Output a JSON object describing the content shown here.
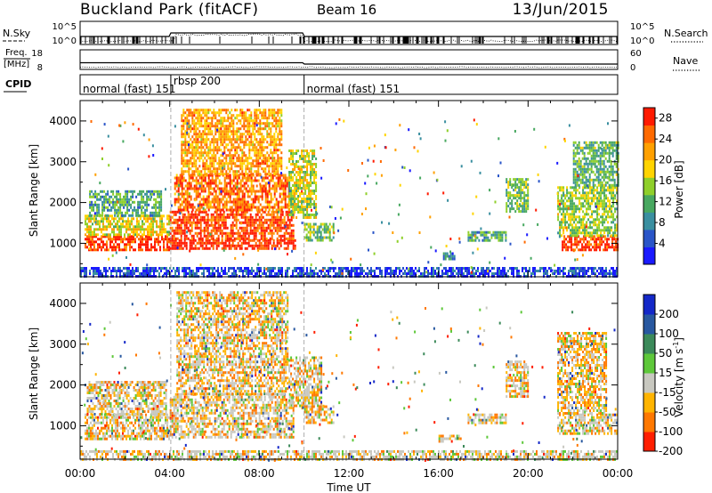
{
  "header": {
    "station": "Buckland Park (fitACF)",
    "beam": "Beam 16",
    "date": "13/Jun/2015"
  },
  "summary_panels": {
    "nsky": {
      "label": "N.Sky",
      "ticks": [
        "10^5",
        "10^0"
      ],
      "right_ticks": [
        "10^5",
        "10^0"
      ],
      "right_label": "N.Search"
    },
    "freq": {
      "label_line1": "Freq.",
      "label_line2": "[MHz]",
      "ticks": [
        "18",
        "8"
      ],
      "right_ticks": [
        "60",
        "0"
      ],
      "right_label": "Nave"
    },
    "cpid": {
      "label": "CPID",
      "segments": [
        {
          "name": "normal (fast) 151",
          "start_hour": 0.0,
          "end_hour": 4.05
        },
        {
          "name": "rbsp 200",
          "start_hour": 4.05,
          "end_hour": 10.0
        },
        {
          "name": "normal (fast) 151",
          "start_hour": 10.0,
          "end_hour": 24.0
        }
      ]
    }
  },
  "chart_data": [
    {
      "type": "heatmap",
      "name": "power",
      "xlabel": "",
      "ylabel": "Slant Range [km]",
      "xlim": [
        0,
        24
      ],
      "ylim": [
        180,
        4500
      ],
      "yticks": [
        1000,
        2000,
        3000,
        4000
      ],
      "colorbar": {
        "label": "Power [dB]",
        "ticks": [
          4,
          8,
          12,
          16,
          20,
          24,
          28
        ],
        "range": [
          0,
          30
        ],
        "colors": [
          "#1a1aff",
          "#2a55c8",
          "#3a8fa0",
          "#48a860",
          "#8fcf2a",
          "#ffd400",
          "#ffa000",
          "#ff6a00",
          "#ff1a00"
        ]
      },
      "regions": [
        {
          "t0": 0.2,
          "t1": 4.0,
          "r0": 850,
          "r1": 1200,
          "level": 0.92
        },
        {
          "t0": 0.2,
          "t1": 4.0,
          "r0": 1200,
          "r1": 1700,
          "level": 0.6
        },
        {
          "t0": 0.4,
          "t1": 3.6,
          "r0": 1700,
          "r1": 2300,
          "level": 0.35
        },
        {
          "t0": 4.0,
          "t1": 9.6,
          "r0": 850,
          "r1": 1100,
          "level": 0.97
        },
        {
          "t0": 4.0,
          "t1": 9.5,
          "r0": 1100,
          "r1": 1800,
          "level": 0.9
        },
        {
          "t0": 4.2,
          "t1": 9.3,
          "r0": 1800,
          "r1": 2700,
          "level": 0.82
        },
        {
          "t0": 4.5,
          "t1": 9.0,
          "r0": 2700,
          "r1": 4300,
          "level": 0.72
        },
        {
          "t0": 9.3,
          "t1": 10.5,
          "r0": 1600,
          "r1": 3300,
          "level": 0.55
        },
        {
          "t0": 10.0,
          "t1": 11.3,
          "r0": 1100,
          "r1": 1500,
          "level": 0.45
        },
        {
          "t0": 16.2,
          "t1": 16.7,
          "r0": 600,
          "r1": 780,
          "level": 0.25
        },
        {
          "t0": 17.3,
          "t1": 19.0,
          "r0": 1050,
          "r1": 1300,
          "level": 0.35
        },
        {
          "t0": 19.0,
          "t1": 20.0,
          "r0": 1800,
          "r1": 2600,
          "level": 0.45
        },
        {
          "t0": 21.5,
          "t1": 24.0,
          "r0": 850,
          "r1": 1200,
          "level": 0.93
        },
        {
          "t0": 21.3,
          "t1": 24.0,
          "r0": 1200,
          "r1": 2400,
          "level": 0.5
        },
        {
          "t0": 22.0,
          "t1": 24.0,
          "r0": 2400,
          "r1": 3500,
          "level": 0.4
        },
        {
          "t0": 0.0,
          "t1": 24.0,
          "r0": 200,
          "r1": 420,
          "level": 0.12
        }
      ]
    },
    {
      "type": "heatmap",
      "name": "velocity",
      "xlabel": "Time UT",
      "ylabel": "Slant Range [km]",
      "xlim": [
        0,
        24
      ],
      "xticks": [
        "00:00",
        "04:00",
        "08:00",
        "12:00",
        "16:00",
        "20:00",
        "00:00"
      ],
      "ylim": [
        180,
        4500
      ],
      "yticks": [
        1000,
        2000,
        3000,
        4000
      ],
      "colorbar": {
        "label": "Velocity [m s^-1]",
        "ticks": [
          200,
          100,
          50,
          15,
          -15,
          -50,
          -100,
          -200
        ],
        "colors": [
          "#1428c8",
          "#2858a0",
          "#3c8a5a",
          "#5ec83a",
          "#c8c8c0",
          "#ffb400",
          "#ff7800",
          "#ff1e00"
        ]
      },
      "regions": [
        {
          "t0": 0.2,
          "t1": 4.0,
          "r0": 700,
          "r1": 1300,
          "level": 0.5
        },
        {
          "t0": 0.3,
          "t1": 3.8,
          "r0": 1300,
          "r1": 2100,
          "level": 0.5
        },
        {
          "t0": 4.0,
          "t1": 9.5,
          "r0": 700,
          "r1": 1800,
          "level": 0.5
        },
        {
          "t0": 4.3,
          "t1": 9.3,
          "r0": 1800,
          "r1": 4300,
          "level": 0.4
        },
        {
          "t0": 9.3,
          "t1": 10.8,
          "r0": 1500,
          "r1": 2700,
          "level": 0.5
        },
        {
          "t0": 10.0,
          "t1": 11.3,
          "r0": 1100,
          "r1": 1500,
          "level": 0.35
        },
        {
          "t0": 16.0,
          "t1": 17.0,
          "r0": 620,
          "r1": 780,
          "level": 0.5
        },
        {
          "t0": 17.3,
          "t1": 19.0,
          "r0": 1050,
          "r1": 1300,
          "level": 0.6
        },
        {
          "t0": 19.0,
          "t1": 20.0,
          "r0": 1700,
          "r1": 2600,
          "level": 0.5
        },
        {
          "t0": 21.3,
          "t1": 24.0,
          "r0": 800,
          "r1": 1300,
          "level": 0.5
        },
        {
          "t0": 21.3,
          "t1": 23.5,
          "r0": 1300,
          "r1": 3300,
          "level": 0.3
        },
        {
          "t0": 0.0,
          "t1": 24.0,
          "r0": 200,
          "r1": 400,
          "level": 0.62
        }
      ]
    }
  ]
}
